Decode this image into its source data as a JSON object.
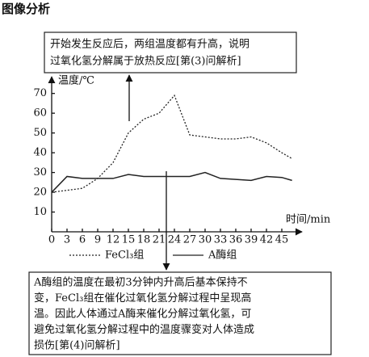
{
  "chart_data": {
    "type": "line",
    "heading": "图像分析",
    "top_note": [
      "开始发生反应后，两组温度都有升高，说明",
      "过氧化氢分解属于放热反应[第(3)问解析]"
    ],
    "bottom_note": [
      "A酶组的温度在最初3分钟内升高后基本保持不",
      "变，FeCl₃组在催化过氧化氢分解过程中呈现高",
      "温。因此人体通过A酶来催化分解过氧化氢，可",
      "避免过氧化氢分解过程中的温度骤变对人体造成",
      "损伤[第(4)问解析]"
    ],
    "y_label": "温度/℃",
    "x_label": "时间/min",
    "x": [
      0,
      3,
      6,
      9,
      12,
      15,
      18,
      21,
      24,
      27,
      30,
      33,
      36,
      39,
      42,
      45,
      47
    ],
    "series": [
      {
        "name": "FeCl₃组",
        "color": "#222",
        "style": "dotted",
        "values": [
          20,
          21,
          22,
          27,
          35,
          50,
          57,
          60,
          69,
          49,
          48,
          47,
          47,
          48,
          45,
          40,
          37
        ]
      },
      {
        "name": "A酶组",
        "color": "#222",
        "style": "solid",
        "values": [
          20,
          28,
          27,
          27,
          27,
          29,
          28,
          28,
          28,
          28,
          30,
          27,
          26.5,
          26,
          28,
          27.5,
          26
        ]
      }
    ],
    "xlim": [
      0,
      48
    ],
    "xticks": [
      0,
      3,
      6,
      9,
      12,
      15,
      18,
      21,
      24,
      27,
      30,
      33,
      36,
      39,
      42,
      45
    ],
    "ylim": [
      0,
      76
    ],
    "yticks": [
      10,
      20,
      30,
      40,
      50,
      60,
      70
    ]
  }
}
